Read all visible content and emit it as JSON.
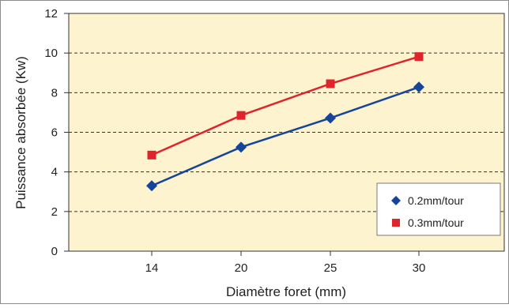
{
  "chart_data": {
    "type": "line",
    "title": "",
    "xlabel": "Diamètre foret (mm)",
    "ylabel": "Puissance absorbée (Kw)",
    "categories": [
      "14",
      "20",
      "25",
      "30"
    ],
    "ylim": [
      0,
      12
    ],
    "yticks": [
      "0",
      "2",
      "4",
      "6",
      "8",
      "10",
      "12"
    ],
    "grid": "horizontal dashed",
    "legend_position": "bottom-right",
    "background": "#fdf3cf",
    "series": [
      {
        "name": "0.2mm/tour",
        "values": [
          3.3,
          5.25,
          6.72,
          8.28
        ],
        "color": "#15449a",
        "marker": "diamond"
      },
      {
        "name": "0.3mm/tour",
        "values": [
          4.85,
          6.85,
          8.45,
          9.82
        ],
        "color": "#e0242c",
        "marker": "square"
      }
    ]
  }
}
